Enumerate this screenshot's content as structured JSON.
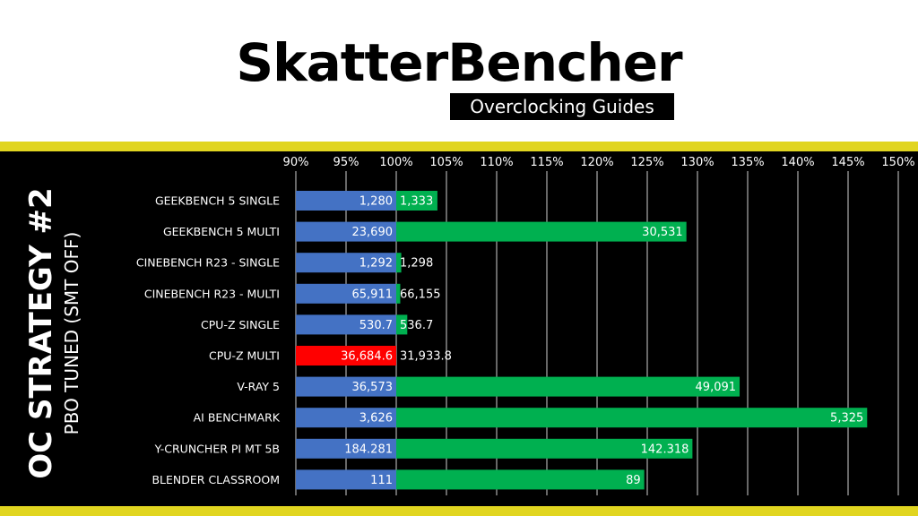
{
  "header": {
    "brand": "SkatterBencher",
    "subtitle": "Overclocking Guides"
  },
  "side_title": {
    "main": "OC STRATEGY #2",
    "sub": "PBO TUNED (SMT OFF)"
  },
  "colors": {
    "stripe": "#e1d520",
    "baseline": "#4472c4",
    "result": "#00b050",
    "regression": "#ff0000"
  },
  "chart_data": {
    "type": "bar",
    "orientation": "horizontal",
    "xlim": [
      90,
      150
    ],
    "x_ticks": [
      "90%",
      "95%",
      "100%",
      "105%",
      "110%",
      "115%",
      "120%",
      "125%",
      "130%",
      "135%",
      "140%",
      "145%",
      "150%"
    ],
    "grid": true,
    "categories": [
      "GEEKBENCH 5 SINGLE",
      "GEEKBENCH 5 MULTI",
      "CINEBENCH R23 - SINGLE",
      "CINEBENCH R23 - MULTI",
      "CPU-Z SINGLE",
      "CPU-Z MULTI",
      "V-RAY 5",
      "AI BENCHMARK",
      "Y-CRUNCHER PI MT 5B",
      "BLENDER CLASSROOM"
    ],
    "series": [
      {
        "values": [
          100,
          100,
          100,
          100,
          100,
          100,
          100,
          100,
          100,
          100
        ],
        "labels": [
          "1,280",
          "23,690",
          "1,292",
          "65,911",
          "530.7",
          "36,684.6",
          "36,573",
          "3,626",
          "184.281",
          "111"
        ],
        "colors": [
          "#4472c4",
          "#4472c4",
          "#4472c4",
          "#4472c4",
          "#4472c4",
          "#ff0000",
          "#4472c4",
          "#4472c4",
          "#4472c4",
          "#4472c4"
        ]
      },
      {
        "values": [
          104.1,
          128.9,
          100.5,
          100.4,
          101.1,
          87.0,
          134.2,
          146.9,
          129.5,
          124.7
        ],
        "labels": [
          "1,333",
          "30,531",
          "1,298",
          "66,155",
          "536.7",
          "31,933.8",
          "49,091",
          "5,325",
          "142.318",
          "89"
        ],
        "colors": [
          "#00b050",
          "#00b050",
          "#00b050",
          "#00b050",
          "#00b050",
          "#00b050",
          "#00b050",
          "#00b050",
          "#00b050",
          "#00b050"
        ]
      }
    ]
  }
}
